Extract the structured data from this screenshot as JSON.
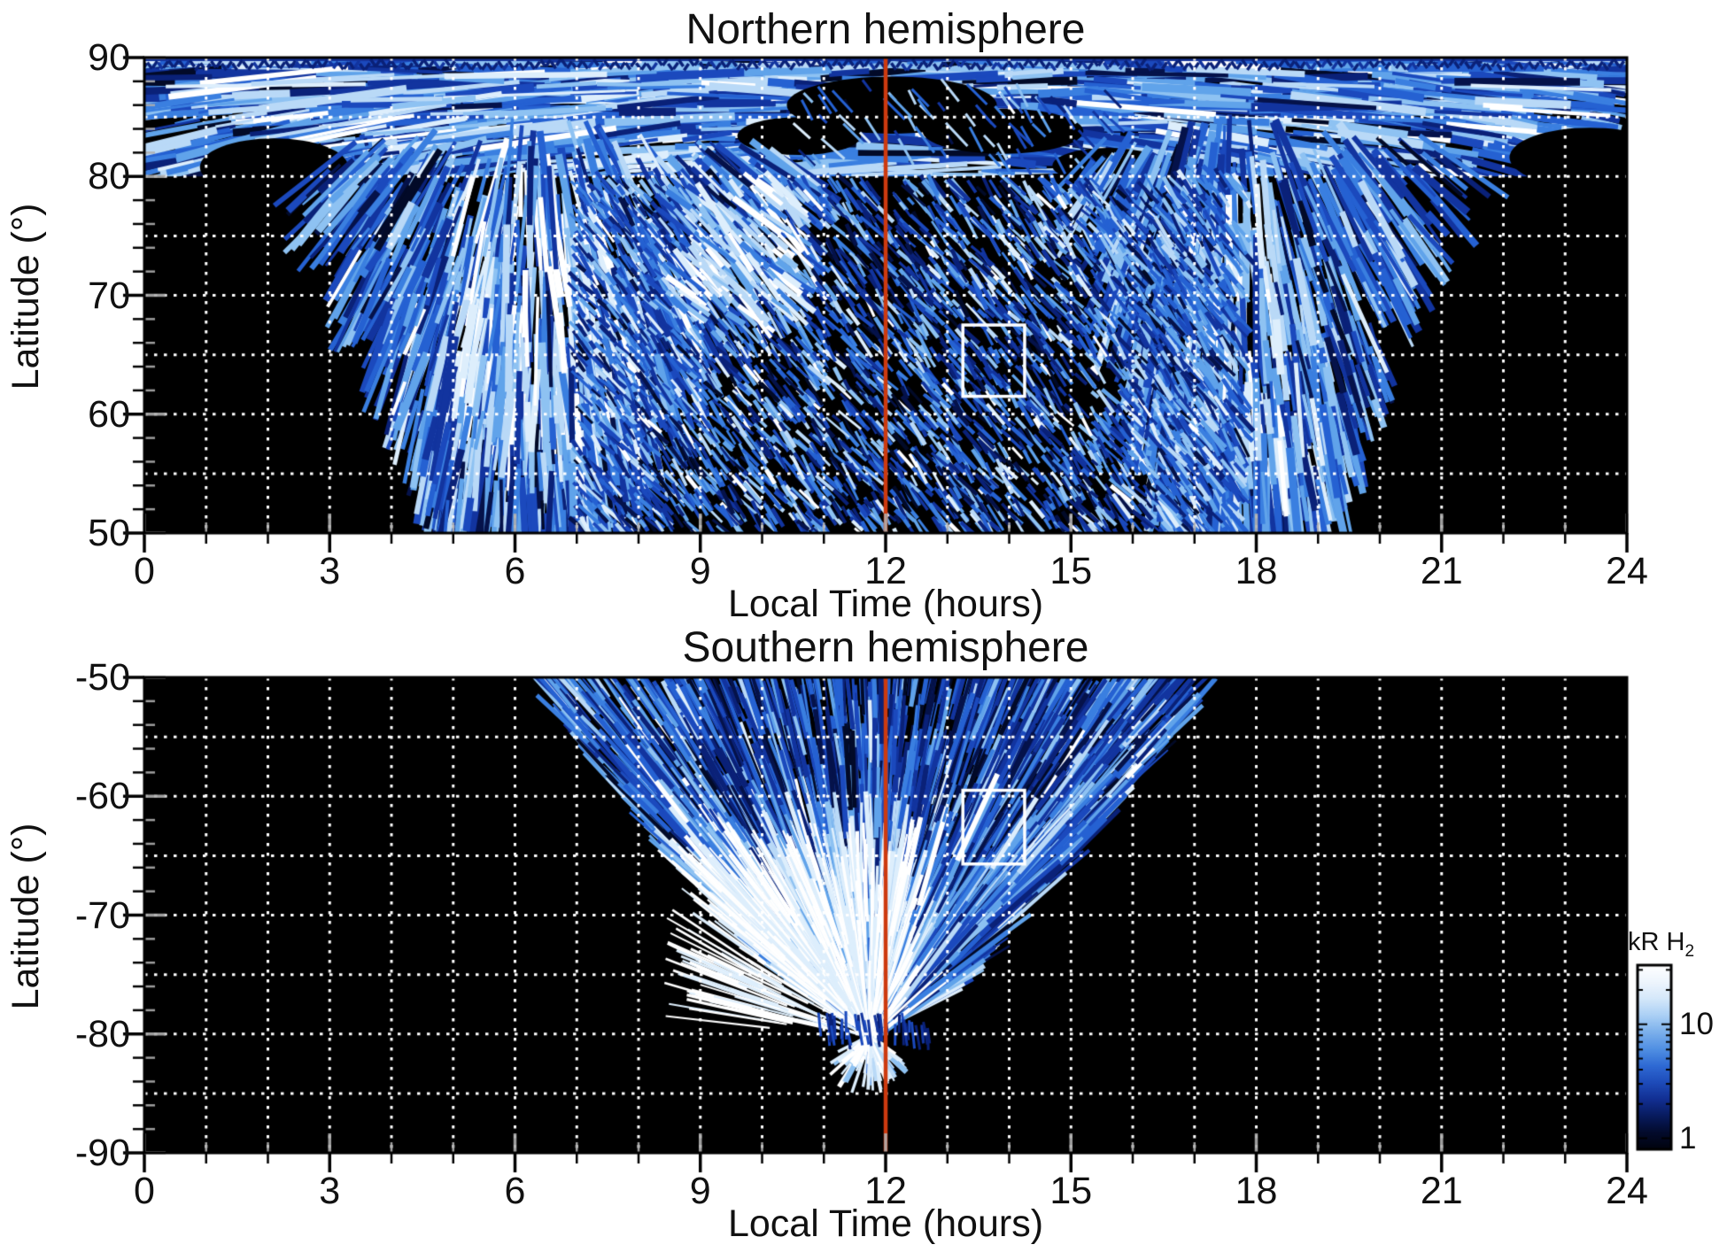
{
  "figure": {
    "background": "#ffffff",
    "text_color": "#000000"
  },
  "chart_data": {
    "type": "heatmap",
    "description": "Maps of H2 auroral emission brightness versus local time and latitude for the northern and southern hemispheres; black means no data, blue scale gives brightness in kR of H2.",
    "panels": [
      {
        "id": "north",
        "title": "Northern hemisphere",
        "xlabel": "Local Time (hours)",
        "ylabel": "Latitude (°)",
        "xlim": [
          0,
          24
        ],
        "ylim": [
          50,
          90
        ],
        "x_ticks": [
          0,
          3,
          6,
          9,
          12,
          15,
          18,
          21,
          24
        ],
        "x_tick_labels": [
          "0",
          "3",
          "6",
          "9",
          "12",
          "15",
          "18",
          "21",
          "24"
        ],
        "y_ticks": [
          90,
          80,
          70,
          60,
          50
        ],
        "y_tick_labels": [
          "90",
          "80",
          "70",
          "60",
          "50"
        ],
        "x_minor_tick_step": 1,
        "y_minor_tick_step": 2,
        "grid_x_step_hours": 1,
        "grid_y_step_degrees": 5,
        "reference_line_lt": 12,
        "highlight_box": {
          "lt_min": 13.25,
          "lt_max": 14.25,
          "lat_min": 61.5,
          "lat_max": 67.5
        },
        "coverage": {
          "seed": 7,
          "polar_cap": {
            "lat_min": 80,
            "lat_max": 90,
            "lt_min": 0,
            "lt_max": 24
          },
          "dawn_lobe_center_lt": 6.3,
          "dusk_lobe_center_lt": 17.6,
          "dawn_bright_lt": [
            5.0,
            7.6
          ],
          "dawn_bright_lat": [
            56,
            79
          ],
          "dusk_bright_lt": [
            16.7,
            18.5
          ],
          "dusk_bright_lat": [
            54,
            76
          ],
          "speckle_lt": [
            7.0,
            17.2
          ],
          "speckle_lat": [
            50,
            79.5
          ],
          "dark_patches_lt_lat_rx_ry": [
            [
              12.1,
              86.0,
              1.7,
              2.4
            ],
            [
              13.9,
              83.8,
              1.3,
              1.9
            ],
            [
              10.6,
              83.4,
              1.0,
              1.6
            ],
            [
              2.1,
              80.8,
              1.2,
              2.4
            ],
            [
              23.4,
              81.6,
              1.3,
              2.5
            ],
            [
              15.6,
              80.9,
              0.9,
              1.5
            ]
          ]
        }
      },
      {
        "id": "south",
        "title": "Southern hemisphere",
        "xlabel": "Local Time (hours)",
        "ylabel": "Latitude (°)",
        "xlim": [
          0,
          24
        ],
        "ylim": [
          -90,
          -50
        ],
        "x_ticks": [
          0,
          3,
          6,
          9,
          12,
          15,
          18,
          21,
          24
        ],
        "x_tick_labels": [
          "0",
          "3",
          "6",
          "9",
          "12",
          "15",
          "18",
          "21",
          "24"
        ],
        "y_ticks": [
          -50,
          -60,
          -70,
          -80,
          -90
        ],
        "y_tick_labels": [
          "-50",
          "-60",
          "-70",
          "-80",
          "-90"
        ],
        "x_minor_tick_step": 1,
        "y_minor_tick_step": 2,
        "grid_x_step_hours": 1,
        "grid_y_step_degrees": 5,
        "reference_line_lt": 12,
        "highlight_box": {
          "lt_min": 13.25,
          "lt_max": 14.25,
          "lat_min": -65.7,
          "lat_max": -59.5
        },
        "coverage": {
          "seed": 11,
          "cone_apex_lt": 11.75,
          "cone_apex_lat": -80.3,
          "cone_center_lt": 11.8,
          "cone_top_halfwidth_hours": 5.3,
          "bright_sector_lt": [
            8.8,
            12.5
          ],
          "bright_sector_lat": [
            -79.5,
            -63
          ],
          "dark_sector_lt": [
            9.0,
            14.8
          ],
          "dark_sector_lat": [
            -61.5,
            -50
          ]
        }
      }
    ],
    "colorbar": {
      "label": "kR H",
      "label_sub": "2",
      "scale": "log",
      "tick_labels": [
        {
          "value": 10,
          "label": "10"
        },
        {
          "value": 1,
          "label": "1"
        }
      ],
      "range_approx": [
        0.8,
        33
      ],
      "gradient_top_to_bottom": [
        "#ffffff",
        "#eef5fd",
        "#d5e8fa",
        "#abd0f5",
        "#7cb0ec",
        "#5190e3",
        "#2f6ad4",
        "#1e4cba",
        "#122f93",
        "#081b5e",
        "#030b2c",
        "#01030e"
      ]
    },
    "palette_bright_to_dark": [
      "#ffffff",
      "#ddeefc",
      "#b9d9f7",
      "#8ec2f2",
      "#60a3ea",
      "#3a7fe0",
      "#2561d2",
      "#1b49bd",
      "#12349f",
      "#0a2178",
      "#05124a",
      "#020a28"
    ],
    "grid_color": "#ffffff",
    "grid_style": "dotted",
    "reference_line_color": "#cd3a0f",
    "highlight_box_color": "#ffffff",
    "background_no_data_color": "#000000"
  }
}
